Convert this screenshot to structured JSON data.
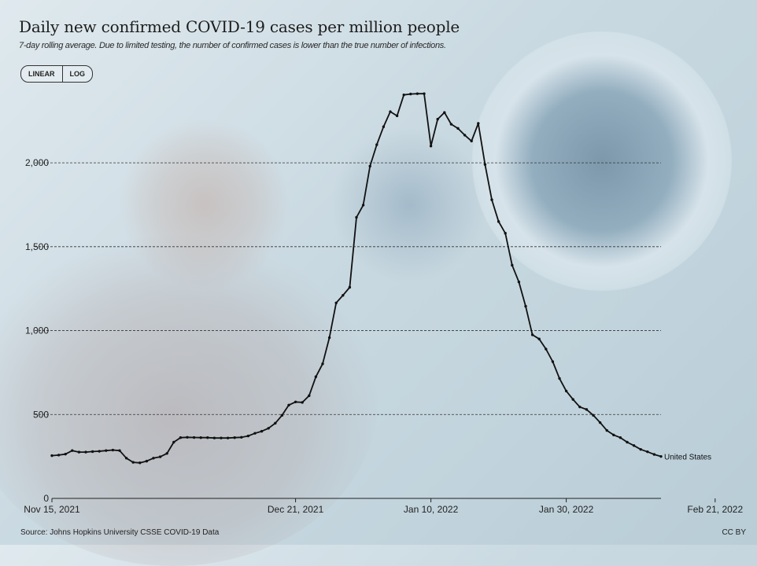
{
  "title": "Daily new confirmed COVID-19 cases per million people",
  "subtitle": "7-day rolling average. Due to limited testing, the number of confirmed cases is lower than the true number of infections.",
  "scale_toggle": {
    "linear": "LINEAR",
    "log": "LOG"
  },
  "source": "Source: Johns Hopkins University CSSE COVID-19 Data",
  "license": "CC BY",
  "chart_data": {
    "type": "line",
    "title": "Daily new confirmed COVID-19 cases per million people",
    "xlabel": "",
    "ylabel": "",
    "ylim": [
      0,
      2400
    ],
    "y_ticks": [
      {
        "value": 0,
        "label": "0"
      },
      {
        "value": 500,
        "label": "500"
      },
      {
        "value": 1000,
        "label": "1,000"
      },
      {
        "value": 1500,
        "label": "1,500"
      },
      {
        "value": 2000,
        "label": "2,000"
      }
    ],
    "x_ticks": [
      {
        "day": 0,
        "label": "Nov 15, 2021"
      },
      {
        "day": 36,
        "label": "Dec 21, 2021"
      },
      {
        "day": 56,
        "label": "Jan 10, 2022"
      },
      {
        "day": 76,
        "label": "Jan 30, 2022"
      },
      {
        "day": 98,
        "label": "Feb 21, 2022"
      }
    ],
    "x_start": "Nov 15, 2021",
    "x_end": "Feb 21, 2022",
    "series": [
      {
        "name": "United States",
        "color": "#111111",
        "values": [
          255,
          258,
          264,
          285,
          276,
          276,
          279,
          281,
          285,
          288,
          285,
          240,
          215,
          212,
          222,
          240,
          248,
          268,
          335,
          362,
          364,
          363,
          362,
          362,
          360,
          360,
          360,
          362,
          364,
          372,
          388,
          400,
          418,
          448,
          495,
          556,
          575,
          572,
          612,
          725,
          802,
          958,
          1165,
          1210,
          1258,
          1675,
          1748,
          1980,
          2108,
          2215,
          2305,
          2280,
          2405,
          2410,
          2412,
          2412,
          2100,
          2260,
          2300,
          2230,
          2205,
          2165,
          2130,
          2235,
          1990,
          1780,
          1650,
          1580,
          1390,
          1290,
          1145,
          975,
          950,
          890,
          815,
          715,
          640,
          590,
          545,
          530,
          495,
          452,
          405,
          378,
          362,
          335,
          315,
          292,
          278,
          262,
          250
        ]
      }
    ]
  }
}
